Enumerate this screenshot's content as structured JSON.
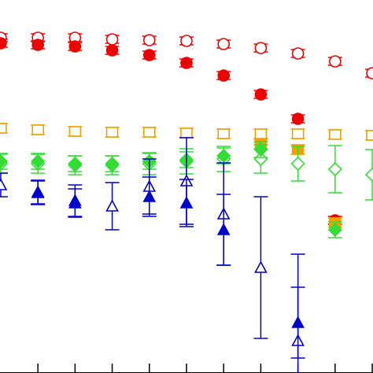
{
  "chart_data": {
    "type": "scatter",
    "xlim": [
      -0.02,
      10.02
    ],
    "ylim": [
      0,
      474
    ],
    "xticks": [
      1,
      2,
      3,
      4,
      5,
      6,
      7,
      8,
      9,
      10
    ],
    "series": [
      {
        "color": "#ee0000",
        "marker": "circle",
        "filled": false,
        "x": [
          0,
          1,
          2,
          3,
          4,
          5,
          6,
          7,
          8,
          9,
          10
        ],
        "values": [
          426,
          426,
          426,
          424,
          423,
          422,
          418,
          413,
          406,
          396,
          381
        ],
        "errors": [
          5,
          5,
          5,
          5,
          5,
          5,
          5,
          5,
          5,
          5,
          5
        ]
      },
      {
        "color": "#ee0000",
        "marker": "circle",
        "filled": true,
        "x": [
          0,
          1,
          2,
          3,
          4,
          5,
          6,
          7,
          8,
          9
        ],
        "values": [
          419,
          417,
          415,
          410,
          404,
          394,
          378,
          354,
          323,
          194
        ],
        "errors": [
          5,
          5,
          5,
          5,
          5,
          5,
          5,
          5,
          5,
          5
        ]
      },
      {
        "color": "#f0a000",
        "marker": "square",
        "filled": false,
        "x": [
          0,
          1,
          2,
          3,
          4,
          5,
          6,
          7,
          8,
          9,
          10
        ],
        "values": [
          311,
          309,
          307,
          306,
          306,
          305,
          304,
          304,
          304,
          303,
          302
        ],
        "errors": [
          6,
          6,
          6,
          6,
          6,
          6,
          6,
          6,
          6,
          6,
          6
        ]
      },
      {
        "color": "#f0a000",
        "marker": "square",
        "filled": true,
        "x": [
          7,
          8,
          9
        ],
        "values": [
          291,
          284,
          191
        ],
        "errors": [
          6,
          6,
          6
        ]
      },
      {
        "color": "#33dd33",
        "marker": "diamond",
        "filled": false,
        "x": [
          0,
          1,
          2,
          3,
          4,
          5,
          6,
          7,
          8,
          9,
          10
        ],
        "values": [
          266,
          266,
          264,
          264,
          266,
          269,
          272,
          272,
          266,
          259,
          252
        ],
        "errors": [
          12,
          12,
          12,
          12,
          14,
          16,
          16,
          18,
          22,
          30,
          32
        ]
      },
      {
        "color": "#33dd33",
        "marker": "diamond",
        "filled": true,
        "x": [
          0,
          1,
          2,
          3,
          4,
          5,
          6,
          7,
          9
        ],
        "values": [
          269,
          269,
          266,
          266,
          269,
          271,
          276,
          284,
          182
        ],
        "errors": [
          10,
          10,
          10,
          10,
          10,
          10,
          10,
          10,
          10
        ]
      },
      {
        "color": "#0000cc",
        "marker": "triangle",
        "filled": false,
        "x": [
          0,
          1,
          2,
          3,
          4,
          5,
          6,
          7,
          8
        ],
        "values": [
          239,
          229,
          219,
          212,
          237,
          244,
          202,
          134,
          41
        ],
        "errors": [
          15,
          15,
          20,
          30,
          35,
          55,
          65,
          90,
          110
        ]
      },
      {
        "color": "#0000cc",
        "marker": "triangle",
        "filled": true,
        "x": [
          1,
          2,
          4,
          5,
          6,
          8
        ],
        "values": [
          230,
          216,
          224,
          216,
          182,
          64
        ],
        "errors": [
          15,
          18,
          25,
          30,
          45,
          45
        ]
      }
    ]
  }
}
